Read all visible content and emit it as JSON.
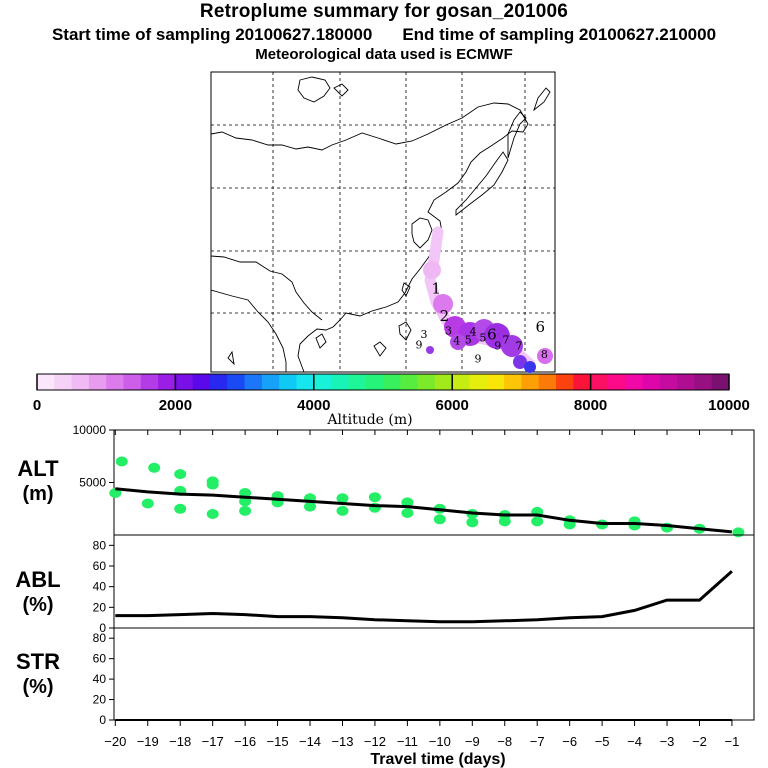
{
  "header": {
    "title": "Retroplume summary for gosan_201006",
    "start_label": "Start time of sampling 20100627.180000",
    "end_label": "End time of sampling 20100627.210000",
    "met_label": "Meteorological data used is ECMWF"
  },
  "colors": {
    "alt_points": "#22ee66",
    "line": "#000000"
  },
  "chart_data": [
    {
      "type": "map",
      "title": "Retroplume trajectory",
      "labels": [
        {
          "text": "1",
          "lon": 126.5,
          "lat": 28.8
        },
        {
          "text": "2",
          "lon": 127.5,
          "lat": 24.5
        },
        {
          "text": "3",
          "lon": 125.0,
          "lat": 21.8
        },
        {
          "text": "3",
          "lon": 128.0,
          "lat": 22.4
        },
        {
          "text": "4",
          "lon": 131.0,
          "lat": 22.2
        },
        {
          "text": "4",
          "lon": 129.0,
          "lat": 20.8
        },
        {
          "text": "5",
          "lon": 130.4,
          "lat": 21.0
        },
        {
          "text": "5",
          "lon": 132.2,
          "lat": 21.3
        },
        {
          "text": "6",
          "lon": 133.3,
          "lat": 21.6
        },
        {
          "text": "6",
          "lon": 139.2,
          "lat": 22.8
        },
        {
          "text": "7",
          "lon": 136.6,
          "lat": 20.0
        },
        {
          "text": "7",
          "lon": 135.0,
          "lat": 21.0
        },
        {
          "text": "8",
          "lon": 139.7,
          "lat": 18.7
        },
        {
          "text": "9",
          "lon": 124.4,
          "lat": 20.2
        },
        {
          "text": "9",
          "lon": 131.6,
          "lat": 18.0
        },
        {
          "text": "9",
          "lon": 134.0,
          "lat": 20.0
        }
      ]
    },
    {
      "type": "colorbar",
      "xlabel": "Altitude (m)",
      "range": [
        0,
        10000
      ],
      "ticks": [
        "0",
        "2000",
        "4000",
        "6000",
        "8000",
        "10000"
      ]
    },
    {
      "type": "scatter",
      "ylabel": "ALT",
      "ylabel_unit": "(m)",
      "ylim": [
        0,
        10000
      ],
      "yticks": [
        "5000",
        "10000"
      ],
      "x": [
        -20,
        -19,
        -18,
        -17,
        -16,
        -15,
        -14,
        -13,
        -12,
        -11,
        -10,
        -9,
        -8,
        -7,
        -6,
        -5,
        -4,
        -3,
        -2,
        -1
      ],
      "line": [
        4400,
        4100,
        3900,
        3800,
        3600,
        3400,
        3200,
        3000,
        2800,
        2700,
        2400,
        2100,
        1900,
        1900,
        1400,
        1100,
        1100,
        900,
        600,
        300
      ],
      "points": [
        {
          "x": -20,
          "y": 4000
        },
        {
          "x": -19.8,
          "y": 7000
        },
        {
          "x": -19,
          "y": 3000
        },
        {
          "x": -18.8,
          "y": 6400
        },
        {
          "x": -18,
          "y": 2500
        },
        {
          "x": -18,
          "y": 5800
        },
        {
          "x": -18,
          "y": 4200
        },
        {
          "x": -17,
          "y": 2000
        },
        {
          "x": -17,
          "y": 4800
        },
        {
          "x": -17,
          "y": 5100
        },
        {
          "x": -16,
          "y": 2300
        },
        {
          "x": -16,
          "y": 4000
        },
        {
          "x": -16,
          "y": 3200
        },
        {
          "x": -15,
          "y": 3100
        },
        {
          "x": -15,
          "y": 3700
        },
        {
          "x": -14,
          "y": 2700
        },
        {
          "x": -14,
          "y": 3500
        },
        {
          "x": -13,
          "y": 2300
        },
        {
          "x": -13,
          "y": 3500
        },
        {
          "x": -12,
          "y": 2600
        },
        {
          "x": -12,
          "y": 3600
        },
        {
          "x": -11,
          "y": 2100
        },
        {
          "x": -11,
          "y": 3100
        },
        {
          "x": -10,
          "y": 1500
        },
        {
          "x": -10,
          "y": 2500
        },
        {
          "x": -9,
          "y": 1200
        },
        {
          "x": -9,
          "y": 2000
        },
        {
          "x": -8,
          "y": 1900
        },
        {
          "x": -8,
          "y": 1300
        },
        {
          "x": -7,
          "y": 2200
        },
        {
          "x": -7,
          "y": 1300
        },
        {
          "x": -6,
          "y": 1400
        },
        {
          "x": -6,
          "y": 1000
        },
        {
          "x": -5,
          "y": 1000
        },
        {
          "x": -4,
          "y": 900
        },
        {
          "x": -4,
          "y": 1300
        },
        {
          "x": -3,
          "y": 700
        },
        {
          "x": -2,
          "y": 600
        },
        {
          "x": -0.8,
          "y": 250
        }
      ]
    },
    {
      "type": "line",
      "ylabel": "ABL",
      "ylabel_unit": "(%)",
      "ylim": [
        0,
        90
      ],
      "yticks": [
        "0",
        "20",
        "40",
        "60",
        "80"
      ],
      "x": [
        -20,
        -19,
        -18,
        -17,
        -16,
        -15,
        -14,
        -13,
        -12,
        -11,
        -10,
        -9,
        -8,
        -7,
        -6,
        -5,
        -4,
        -3,
        -2,
        -1
      ],
      "values": [
        12,
        12,
        13,
        14,
        13,
        11,
        11,
        10,
        8,
        7,
        6,
        6,
        7,
        8,
        10,
        11,
        17,
        27,
        27,
        55
      ]
    },
    {
      "type": "line",
      "ylabel": "STR",
      "ylabel_unit": "(%)",
      "ylim": [
        0,
        90
      ],
      "yticks": [
        "0",
        "20",
        "40",
        "60",
        "80"
      ],
      "x": [
        -20,
        -1
      ],
      "values": [
        0,
        0
      ],
      "xlabel": "Travel time (days)",
      "xticks": [
        "−20",
        "−19",
        "−18",
        "−17",
        "−16",
        "−15",
        "−14",
        "−13",
        "−12",
        "−11",
        "−10",
        "−9",
        "−8",
        "−7",
        "−6",
        "−5",
        "−4",
        "−3",
        "−2",
        "−1"
      ]
    }
  ]
}
